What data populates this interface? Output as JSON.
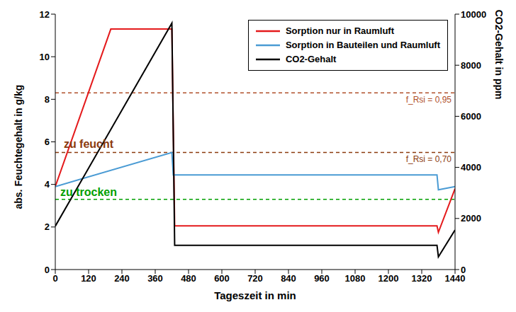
{
  "chart_data": {
    "type": "line",
    "x_label": "Tageszeit in min",
    "y_label": "abs. Feuchtegehalt in g/kg",
    "y2_label": "CO2-Gehalt in ppm",
    "xlim": [
      0,
      1440
    ],
    "xticks": [
      0,
      120,
      240,
      360,
      480,
      600,
      720,
      840,
      960,
      1080,
      1200,
      1320,
      1440
    ],
    "ylim": [
      0,
      12
    ],
    "yticks": [
      0,
      2,
      4,
      6,
      8,
      10,
      12
    ],
    "y2lim": [
      0,
      10000
    ],
    "y2ticks": [
      0,
      2000,
      4000,
      6000,
      8000,
      10000
    ],
    "grid": false,
    "legend": "upper right",
    "series": [
      {
        "name": "Sorption nur in Raumluft",
        "color": "#e41a1c",
        "x": [
          0,
          200,
          420,
          430,
          1375,
          1380,
          1440
        ],
        "values": [
          3.9,
          11.3,
          11.3,
          2.05,
          2.05,
          1.75,
          3.8
        ]
      },
      {
        "name": "Sorption in Bauteilen und Raumluft",
        "color": "#4a9bd4",
        "x": [
          0,
          420,
          425,
          1375,
          1380,
          1440
        ],
        "values": [
          3.9,
          5.5,
          4.45,
          4.45,
          3.75,
          3.9
        ]
      },
      {
        "name": "CO2-Gehalt",
        "color": "#000000",
        "axis": "y2",
        "x": [
          0,
          420,
          430,
          1375,
          1380,
          1440
        ],
        "values": [
          1700,
          9650,
          950,
          950,
          500,
          1550
        ]
      }
    ],
    "reference_lines": [
      {
        "value": 8.3,
        "label": "f_Rsi = 0,95",
        "color": "#b0502a",
        "line_style": "dashed"
      },
      {
        "value": 5.5,
        "label": "f_Rsi = 0,70",
        "color": "#8b3a0e",
        "line_style": "dashed"
      },
      {
        "value": 3.3,
        "color": "#00a000",
        "line_style": "dashed"
      }
    ],
    "annotations": [
      {
        "text": "zu feucht",
        "x": 120,
        "y": 5.9,
        "color": "#8b3a0e"
      },
      {
        "text": "zu trocken",
        "x": 120,
        "y": 3.65,
        "color": "#00a000"
      }
    ]
  }
}
